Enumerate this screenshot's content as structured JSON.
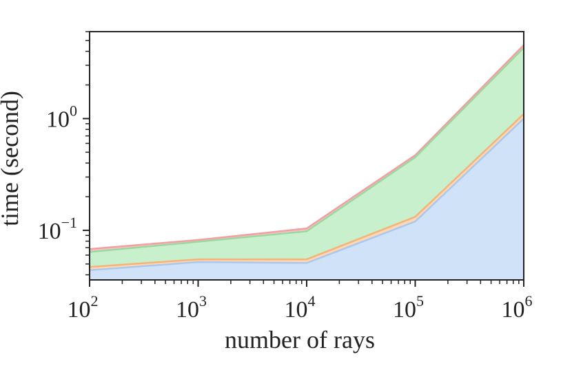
{
  "chart_data": {
    "type": "area",
    "stacked": true,
    "title": "",
    "xlabel": "number of rays",
    "ylabel": "time (second)",
    "xscale": "log",
    "yscale": "log",
    "xlim": [
      100,
      1000000
    ],
    "ylim": [
      0.036,
      6.0
    ],
    "grid": false,
    "x": [
      100,
      1000,
      10000,
      100000,
      1000000
    ],
    "x_ticks": [
      {
        "value": 100,
        "base": "10",
        "exp": "2"
      },
      {
        "value": 1000,
        "base": "10",
        "exp": "3"
      },
      {
        "value": 10000,
        "base": "10",
        "exp": "4"
      },
      {
        "value": 100000,
        "base": "10",
        "exp": "5"
      },
      {
        "value": 1000000,
        "base": "10",
        "exp": "6"
      }
    ],
    "y_ticks": [
      {
        "value": 0.1,
        "base": "10",
        "exp": "−1"
      },
      {
        "value": 1,
        "base": "10",
        "exp": "0"
      }
    ],
    "series": [
      {
        "cumulative": [
          0.044,
          0.052,
          0.051,
          0.12,
          1.0
        ],
        "color": "#cfe2f7",
        "edge": "#aac8ee"
      },
      {
        "cumulative": [
          0.047,
          0.055,
          0.055,
          0.132,
          1.1
        ],
        "color": "#fcd9b6",
        "edge": "#f6b27a"
      },
      {
        "cumulative": [
          0.064,
          0.079,
          0.098,
          0.45,
          4.3
        ],
        "color": "#c8f0cc",
        "edge": "#9ad8a2"
      },
      {
        "cumulative": [
          0.068,
          0.082,
          0.104,
          0.47,
          4.55
        ],
        "color": "#f9c4c4",
        "edge": "#f0a0a0"
      }
    ]
  }
}
